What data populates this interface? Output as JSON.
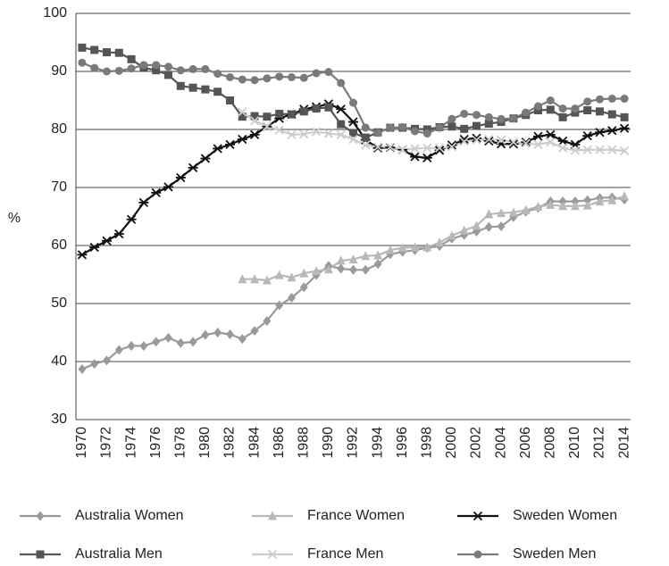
{
  "chart_data": {
    "type": "line",
    "y_label": "%",
    "categories": [
      "1970",
      null,
      "1972",
      null,
      "1974",
      null,
      "1976",
      null,
      "1978",
      null,
      "1980",
      null,
      "1982",
      null,
      "1984",
      null,
      "1986",
      null,
      "1988",
      null,
      "1990",
      null,
      "1992",
      null,
      "1994",
      null,
      "1996",
      null,
      "1998",
      null,
      "2000",
      null,
      "2002",
      null,
      "2004",
      null,
      "2006",
      null,
      "2008",
      null,
      "2010",
      null,
      "2012",
      null,
      "2014"
    ],
    "ylim": [
      30,
      100
    ],
    "yticks": [
      30,
      40,
      50,
      60,
      70,
      80,
      90,
      100
    ],
    "grid": true,
    "legend": "bottom",
    "series": [
      {
        "name": "Australia Women",
        "color": "#9a9a9a",
        "marker": "diamond",
        "values": [
          38.7,
          39.6,
          40.2,
          42.0,
          42.7,
          42.7,
          43.4,
          44.1,
          43.2,
          43.4,
          44.6,
          45.0,
          44.7,
          43.9,
          45.3,
          47.0,
          49.7,
          51.0,
          52.8,
          54.9,
          56.5,
          56.0,
          55.8,
          55.8,
          56.8,
          58.5,
          58.9,
          59.2,
          59.6,
          59.9,
          61.2,
          61.8,
          62.4,
          63.2,
          63.3,
          64.9,
          65.8,
          66.5,
          67.6,
          67.6,
          67.6,
          67.8,
          68.2,
          68.3,
          67.9
        ]
      },
      {
        "name": "France Women",
        "color": "#b8b8b8",
        "marker": "triangle",
        "values": [
          null,
          null,
          null,
          null,
          null,
          null,
          null,
          null,
          null,
          null,
          null,
          null,
          null,
          54.2,
          54.2,
          54.0,
          54.9,
          54.5,
          55.2,
          55.6,
          55.9,
          57.4,
          57.6,
          58.2,
          58.3,
          59.2,
          59.6,
          59.7,
          59.7,
          60.5,
          61.7,
          62.6,
          63.4,
          65.4,
          65.6,
          65.7,
          66.1,
          66.7,
          67.0,
          66.8,
          66.8,
          66.9,
          67.6,
          67.8,
          68.5
        ]
      },
      {
        "name": "Sweden Women",
        "color": "#111111",
        "marker": "star",
        "values": [
          58.4,
          59.7,
          60.8,
          62.0,
          64.5,
          67.4,
          69.1,
          70.1,
          71.7,
          73.4,
          75.0,
          76.7,
          77.4,
          78.3,
          79.1,
          80.5,
          81.9,
          82.6,
          83.5,
          83.9,
          84.4,
          83.5,
          81.3,
          78.2,
          76.8,
          76.9,
          76.5,
          75.3,
          75.1,
          76.4,
          77.3,
          78.3,
          78.5,
          78.0,
          77.5,
          77.5,
          77.8,
          78.8,
          79.1,
          78.0,
          77.4,
          78.9,
          79.5,
          79.8,
          80.2
        ]
      },
      {
        "name": "Australia Men",
        "color": "#555555",
        "marker": "square",
        "values": [
          94.1,
          93.7,
          93.3,
          93.2,
          92.1,
          90.6,
          90.2,
          89.4,
          87.5,
          87.2,
          86.9,
          86.5,
          85.0,
          82.2,
          82.3,
          82.2,
          82.7,
          82.6,
          83.1,
          83.6,
          83.8,
          80.9,
          79.4,
          78.6,
          79.5,
          80.3,
          80.3,
          80.1,
          80.0,
          80.4,
          80.5,
          80.1,
          80.6,
          81.0,
          81.3,
          81.9,
          82.5,
          83.3,
          83.4,
          82.1,
          82.9,
          83.3,
          83.1,
          82.6,
          82.1
        ]
      },
      {
        "name": "France Men",
        "color": "#cccccc",
        "marker": "x",
        "values": [
          null,
          null,
          null,
          null,
          null,
          null,
          null,
          null,
          null,
          null,
          null,
          null,
          null,
          83.0,
          81.5,
          80.5,
          79.9,
          79.1,
          79.2,
          79.6,
          79.3,
          79.1,
          78.3,
          77.3,
          77.0,
          77.0,
          76.5,
          76.7,
          76.8,
          76.8,
          77.0,
          77.9,
          78.2,
          78.3,
          78.2,
          77.8,
          77.6,
          77.4,
          77.8,
          76.8,
          76.4,
          76.5,
          76.5,
          76.5,
          76.3
        ]
      },
      {
        "name": "Sweden Men",
        "color": "#7a7a7a",
        "marker": "circle",
        "values": [
          91.5,
          90.6,
          90.0,
          90.1,
          90.5,
          91.1,
          91.1,
          90.8,
          90.2,
          90.4,
          90.4,
          89.6,
          89.0,
          88.6,
          88.5,
          88.8,
          89.1,
          89.0,
          88.9,
          89.7,
          89.9,
          88.0,
          84.6,
          80.3,
          79.4,
          80.3,
          80.4,
          79.7,
          79.3,
          80.3,
          81.8,
          82.7,
          82.5,
          82.1,
          81.8,
          81.9,
          82.9,
          84.0,
          85.0,
          83.6,
          83.6,
          84.8,
          85.2,
          85.3,
          85.3
        ]
      }
    ]
  }
}
